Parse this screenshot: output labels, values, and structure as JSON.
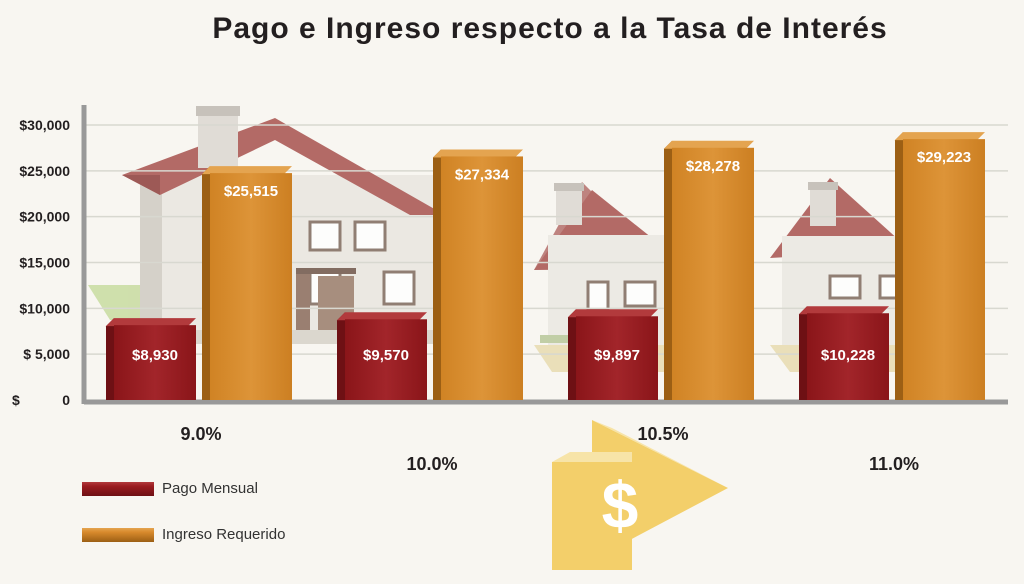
{
  "title": "Pago e Ingreso respecto a la Tasa de Interés",
  "colors": {
    "pago": "#9b1c20",
    "pago_side": "#6e1014",
    "pago_top": "#b23a3c",
    "ingreso": "#d88a2c",
    "ingreso_side": "#9c5f14",
    "ingreso_top": "#e4a450",
    "axis": "#999999",
    "grid": "#d8d8d0",
    "dollar_arrow": "#f4d878"
  },
  "legend": [
    {
      "label": "Pago Mensual",
      "series": "pago"
    },
    {
      "label": "Ingreso Requerido",
      "series": "ingreso"
    }
  ],
  "chart_data": {
    "type": "bar",
    "title": "Pago e Ingreso respecto a la Tasa de Interés",
    "categories": [
      "9.0%",
      "10.0%",
      "10.5%",
      "11.0%"
    ],
    "series": [
      {
        "name": "Pago Mensual",
        "key": "pago",
        "values": [
          8930,
          9570,
          9897,
          10228
        ],
        "labels": [
          "$8,930",
          "$9,570",
          "$9,897",
          "$10,228"
        ]
      },
      {
        "name": "Ingreso Requerido",
        "key": "ingreso",
        "values": [
          25515,
          27334,
          28278,
          29223
        ],
        "labels": [
          "$25,515",
          "$27,334",
          "$28,278",
          "$29,223"
        ]
      }
    ],
    "yticks": [
      0,
      5000,
      10000,
      15000,
      20000,
      25000,
      30000
    ],
    "ytick_labels": [
      "$",
      "$ 5,000",
      "$10,000",
      "$15,000",
      "$20,000",
      "$25,000",
      "$30,000"
    ],
    "ylim": [
      0,
      30000
    ],
    "grid": true,
    "legend_position": "bottom-left"
  }
}
